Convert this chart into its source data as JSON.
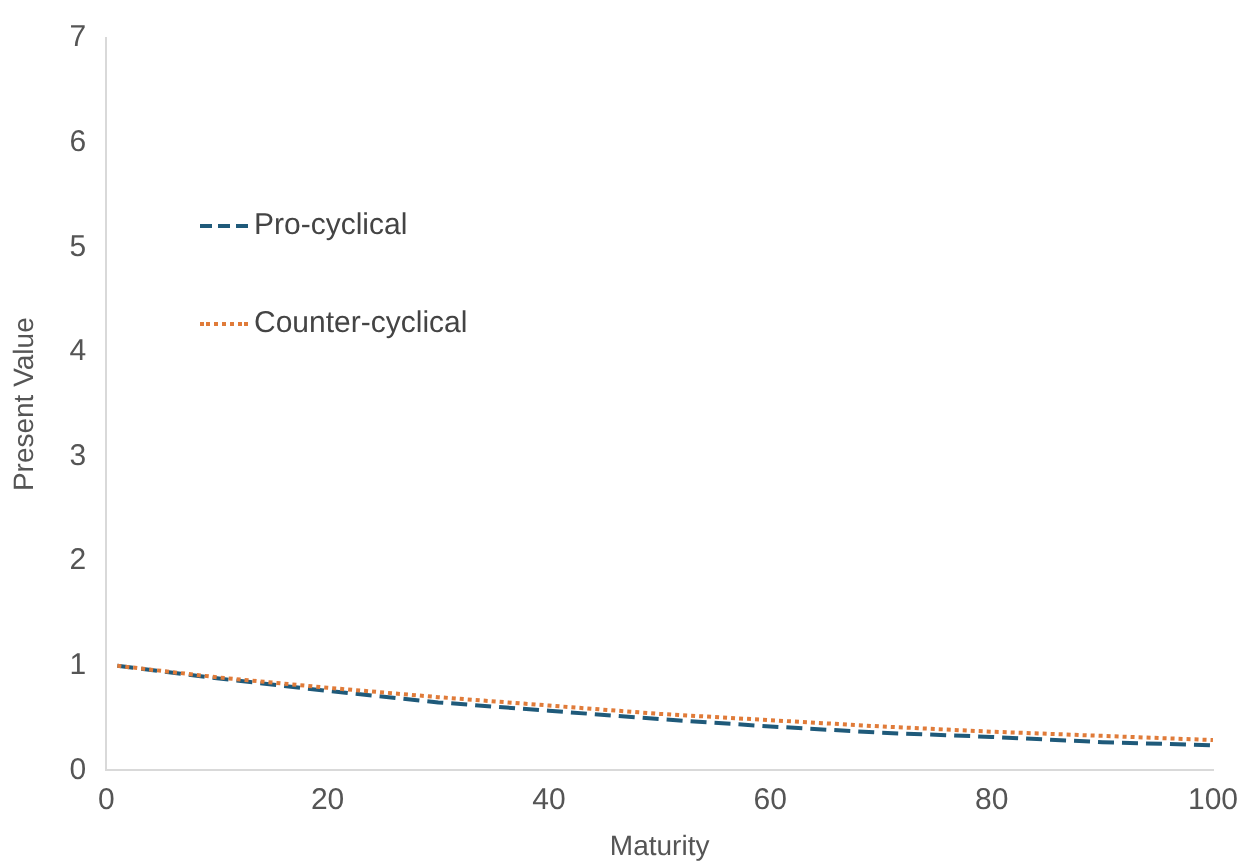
{
  "chart_data": {
    "type": "line",
    "xlabel": "Maturity",
    "ylabel": "Present Value",
    "x": [
      1,
      10,
      20,
      30,
      40,
      50,
      60,
      70,
      80,
      90,
      100
    ],
    "series": [
      {
        "name": "Pro-cyclical",
        "color": "#1f5a7a",
        "line_style": "dashed",
        "values": [
          1,
          0.88,
          0.76,
          0.65,
          0.57,
          0.49,
          0.42,
          0.36,
          0.32,
          0.27,
          0.24
        ]
      },
      {
        "name": "Counter-cyclical",
        "color": "#e07b39",
        "line_style": "dotted",
        "values": [
          1,
          0.89,
          0.79,
          0.7,
          0.62,
          0.54,
          0.48,
          0.42,
          0.37,
          0.33,
          0.29
        ]
      }
    ],
    "xlim": [
      0,
      100
    ],
    "xticks": [
      0,
      20,
      40,
      60,
      80,
      100
    ],
    "ylim": [
      0,
      7
    ],
    "yticks": [
      0,
      1,
      2,
      3,
      4,
      5,
      6,
      7
    ],
    "grid": false,
    "legend": "top left",
    "marker": "none"
  }
}
